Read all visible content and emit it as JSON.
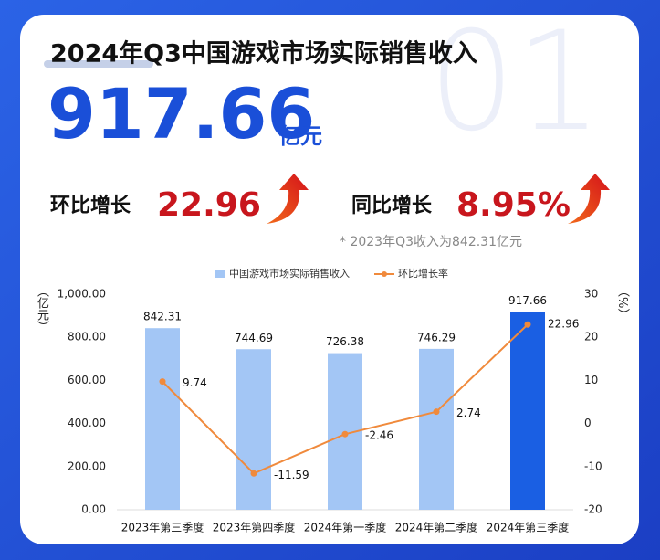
{
  "header": {
    "title": "2024年Q3中国游戏市场实际销售收入",
    "big_number": "917.66",
    "big_unit": "亿元",
    "watermark": "01",
    "mom_label": "环比增长",
    "mom_value": "22.96",
    "yoy_label": "同比增长",
    "yoy_value": "8.95%",
    "note": "* 2023年Q3收入为842.31亿元"
  },
  "chart_data": {
    "type": "bar-line",
    "categories": [
      "2023年第三季度",
      "2023年第四季度",
      "2024年第一季度",
      "2024年第二季度",
      "2024年第三季度"
    ],
    "series": [
      {
        "name": "中国游戏市场实际销售收入",
        "type": "bar",
        "color": "#a3c6f5",
        "colors": [
          "#a3c6f5",
          "#a3c6f5",
          "#a3c6f5",
          "#a3c6f5",
          "#1a5fe3"
        ],
        "values": [
          842.31,
          744.69,
          726.38,
          746.29,
          917.66
        ]
      },
      {
        "name": "环比增长率",
        "type": "line",
        "color": "#f08a3c",
        "axis": "y2",
        "values": [
          9.74,
          -11.59,
          -2.46,
          2.74,
          22.96
        ]
      }
    ],
    "ylabel": "（亿元）",
    "y2label": "（%）",
    "ylim": [
      0,
      1000
    ],
    "yticks": [
      {
        "value": 0,
        "label": "0.00"
      },
      {
        "value": 200,
        "label": "200.00"
      },
      {
        "value": 400,
        "label": "400.00"
      },
      {
        "value": 600,
        "label": "600.00"
      },
      {
        "value": 800,
        "label": "800.00"
      },
      {
        "value": 1000,
        "label": "1,000.00"
      }
    ],
    "y2lim": [
      -20,
      30
    ],
    "y2ticks": [
      -20,
      -10,
      0,
      10,
      20,
      30
    ],
    "grid": false,
    "legend": "top"
  }
}
